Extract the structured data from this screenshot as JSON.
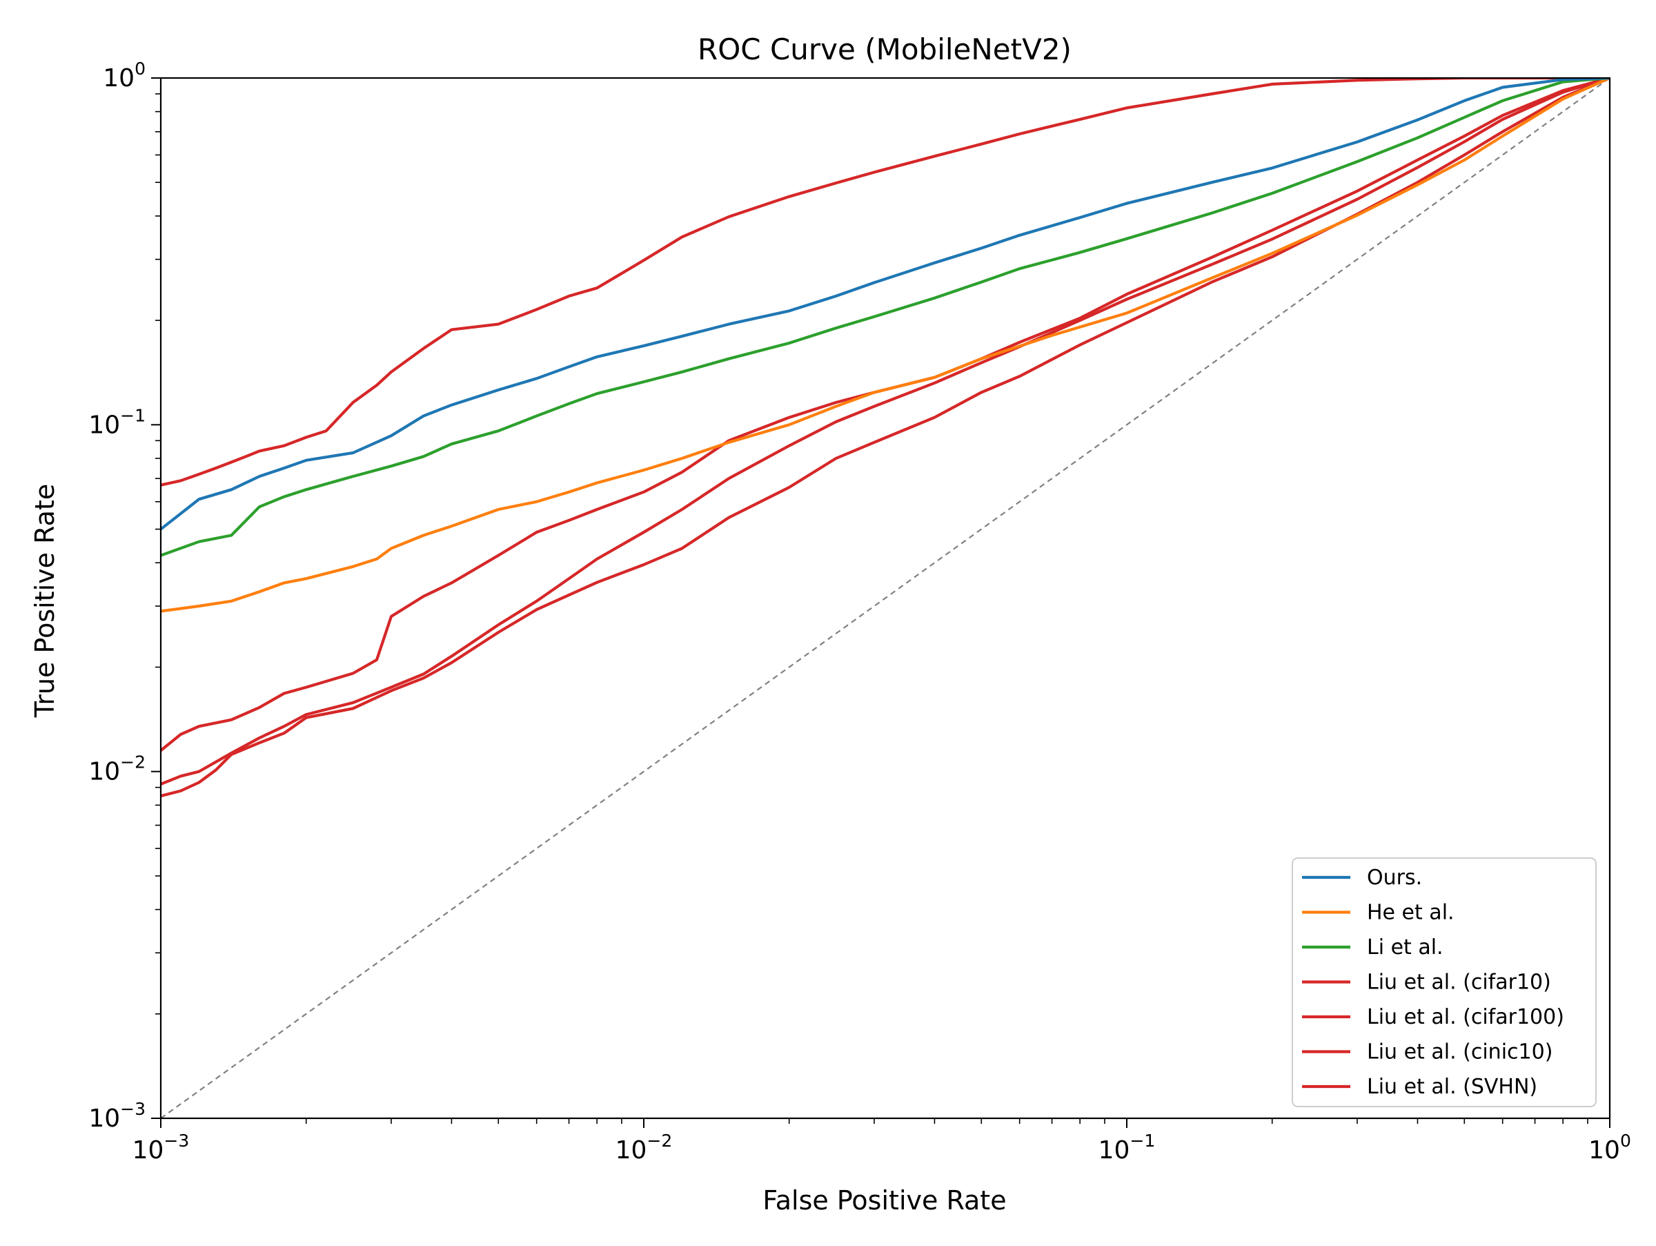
{
  "chart_data": {
    "type": "line",
    "title": "ROC Curve (MobileNetV2)",
    "xlabel": "False Positive Rate",
    "ylabel": "True Positive Rate",
    "xscale": "log",
    "yscale": "log",
    "xlim": [
      0.001,
      1
    ],
    "ylim": [
      0.001,
      1
    ],
    "grid": false,
    "legend_position": "lower-right",
    "x_ticks": [
      {
        "base": "10",
        "exp": "−3",
        "value": 0.001
      },
      {
        "base": "10",
        "exp": "−2",
        "value": 0.01
      },
      {
        "base": "10",
        "exp": "−1",
        "value": 0.1
      },
      {
        "base": "10",
        "exp": "0",
        "value": 1
      }
    ],
    "y_ticks": [
      {
        "base": "10",
        "exp": "−3",
        "value": 0.001
      },
      {
        "base": "10",
        "exp": "−2",
        "value": 0.01
      },
      {
        "base": "10",
        "exp": "−1",
        "value": 0.1
      },
      {
        "base": "10",
        "exp": "0",
        "value": 1
      }
    ],
    "reference_line": {
      "x": [
        0.001,
        1
      ],
      "y": [
        0.001,
        1
      ],
      "color": "#808080",
      "style": "dashed"
    },
    "series": [
      {
        "name": "Ours.",
        "color": "#1f77b4",
        "x": [
          0.001,
          0.0012,
          0.0014,
          0.0016,
          0.0018,
          0.002,
          0.0025,
          0.003,
          0.0035,
          0.004,
          0.005,
          0.006,
          0.007,
          0.008,
          0.01,
          0.012,
          0.015,
          0.02,
          0.025,
          0.03,
          0.04,
          0.05,
          0.06,
          0.08,
          0.1,
          0.15,
          0.2,
          0.3,
          0.4,
          0.5,
          0.6,
          0.8,
          1.0
        ],
        "y": [
          0.05,
          0.061,
          0.065,
          0.071,
          0.075,
          0.079,
          0.083,
          0.093,
          0.106,
          0.114,
          0.126,
          0.136,
          0.147,
          0.157,
          0.169,
          0.18,
          0.195,
          0.213,
          0.235,
          0.257,
          0.293,
          0.323,
          0.352,
          0.396,
          0.435,
          0.5,
          0.55,
          0.654,
          0.757,
          0.86,
          0.94,
          0.99,
          1.0
        ]
      },
      {
        "name": "He et al.",
        "color": "#ff7f0e",
        "x": [
          0.001,
          0.0012,
          0.0014,
          0.0016,
          0.0018,
          0.002,
          0.0025,
          0.0028,
          0.003,
          0.0035,
          0.004,
          0.005,
          0.006,
          0.007,
          0.008,
          0.01,
          0.012,
          0.015,
          0.02,
          0.025,
          0.03,
          0.04,
          0.05,
          0.07,
          0.1,
          0.15,
          0.2,
          0.3,
          0.4,
          0.5,
          0.6,
          0.8,
          1.0
        ],
        "y": [
          0.029,
          0.03,
          0.031,
          0.033,
          0.035,
          0.036,
          0.039,
          0.041,
          0.044,
          0.048,
          0.051,
          0.057,
          0.06,
          0.064,
          0.068,
          0.074,
          0.08,
          0.089,
          0.1,
          0.113,
          0.124,
          0.137,
          0.155,
          0.181,
          0.21,
          0.265,
          0.312,
          0.402,
          0.492,
          0.58,
          0.68,
          0.87,
          1.0
        ]
      },
      {
        "name": "Li et al.",
        "color": "#2ca02c",
        "x": [
          0.001,
          0.0012,
          0.0014,
          0.0016,
          0.0018,
          0.002,
          0.0025,
          0.003,
          0.0035,
          0.004,
          0.005,
          0.006,
          0.007,
          0.008,
          0.01,
          0.012,
          0.015,
          0.02,
          0.025,
          0.03,
          0.04,
          0.05,
          0.06,
          0.08,
          0.1,
          0.15,
          0.2,
          0.3,
          0.4,
          0.5,
          0.6,
          0.8,
          1.0
        ],
        "y": [
          0.042,
          0.046,
          0.048,
          0.058,
          0.062,
          0.065,
          0.071,
          0.076,
          0.081,
          0.088,
          0.096,
          0.106,
          0.115,
          0.123,
          0.133,
          0.142,
          0.155,
          0.172,
          0.19,
          0.205,
          0.232,
          0.258,
          0.282,
          0.314,
          0.344,
          0.408,
          0.465,
          0.574,
          0.672,
          0.77,
          0.86,
          0.975,
          1.0
        ]
      },
      {
        "name": "Liu et al. (cifar10)",
        "color": "#d62728",
        "x": [
          0.001,
          0.0011,
          0.0012,
          0.0013,
          0.0014,
          0.0015,
          0.0016,
          0.0018,
          0.002,
          0.0022,
          0.0025,
          0.0028,
          0.003,
          0.0035,
          0.004,
          0.005,
          0.006,
          0.007,
          0.008,
          0.01,
          0.012,
          0.015,
          0.02,
          0.025,
          0.03,
          0.04,
          0.05,
          0.06,
          0.08,
          0.1,
          0.15,
          0.2,
          0.3,
          0.4,
          0.5,
          0.6,
          0.8,
          1.0
        ],
        "y": [
          0.067,
          0.069,
          0.072,
          0.075,
          0.078,
          0.081,
          0.084,
          0.087,
          0.092,
          0.096,
          0.116,
          0.13,
          0.142,
          0.166,
          0.188,
          0.195,
          0.215,
          0.235,
          0.248,
          0.298,
          0.348,
          0.398,
          0.455,
          0.498,
          0.535,
          0.595,
          0.645,
          0.69,
          0.76,
          0.82,
          0.9,
          0.96,
          0.985,
          0.995,
          1.0,
          1.0,
          1.0,
          1.0
        ]
      },
      {
        "name": "Liu et al. (cifar100)",
        "color": "#d62728",
        "x": [
          0.001,
          0.0011,
          0.0012,
          0.0014,
          0.0016,
          0.0018,
          0.002,
          0.0025,
          0.0028,
          0.003,
          0.0035,
          0.004,
          0.005,
          0.006,
          0.007,
          0.008,
          0.01,
          0.012,
          0.015,
          0.02,
          0.025,
          0.03,
          0.04,
          0.05,
          0.06,
          0.08,
          0.1,
          0.15,
          0.2,
          0.3,
          0.4,
          0.5,
          0.6,
          0.8,
          1.0
        ],
        "y": [
          0.0115,
          0.0128,
          0.0135,
          0.0141,
          0.0153,
          0.0168,
          0.0175,
          0.0192,
          0.021,
          0.028,
          0.032,
          0.035,
          0.042,
          0.049,
          0.053,
          0.057,
          0.064,
          0.073,
          0.09,
          0.105,
          0.116,
          0.124,
          0.137,
          0.155,
          0.173,
          0.203,
          0.238,
          0.304,
          0.364,
          0.472,
          0.58,
          0.68,
          0.78,
          0.92,
          1.0
        ]
      },
      {
        "name": "Liu et al. (cinic10)",
        "color": "#d62728",
        "x": [
          0.001,
          0.0011,
          0.0012,
          0.0014,
          0.0016,
          0.0018,
          0.002,
          0.0025,
          0.003,
          0.0035,
          0.004,
          0.005,
          0.006,
          0.007,
          0.008,
          0.01,
          0.012,
          0.015,
          0.02,
          0.025,
          0.03,
          0.04,
          0.05,
          0.06,
          0.08,
          0.1,
          0.15,
          0.2,
          0.3,
          0.4,
          0.5,
          0.6,
          0.8,
          1.0
        ],
        "y": [
          0.0092,
          0.0097,
          0.01,
          0.0113,
          0.0125,
          0.0135,
          0.0146,
          0.0158,
          0.0175,
          0.0191,
          0.0215,
          0.0265,
          0.031,
          0.036,
          0.041,
          0.049,
          0.057,
          0.07,
          0.087,
          0.102,
          0.113,
          0.132,
          0.151,
          0.168,
          0.2,
          0.23,
          0.29,
          0.343,
          0.447,
          0.552,
          0.655,
          0.76,
          0.91,
          1.0
        ]
      },
      {
        "name": "Liu et al. (SVHN)",
        "color": "#d62728",
        "x": [
          0.001,
          0.0011,
          0.0012,
          0.0013,
          0.0014,
          0.0016,
          0.0018,
          0.002,
          0.0025,
          0.003,
          0.0035,
          0.004,
          0.005,
          0.006,
          0.007,
          0.008,
          0.01,
          0.012,
          0.015,
          0.02,
          0.025,
          0.03,
          0.04,
          0.05,
          0.06,
          0.08,
          0.1,
          0.15,
          0.2,
          0.3,
          0.4,
          0.5,
          0.6,
          0.8,
          1.0
        ],
        "y": [
          0.0085,
          0.0088,
          0.0093,
          0.0101,
          0.0112,
          0.0121,
          0.0129,
          0.0143,
          0.0152,
          0.0171,
          0.0186,
          0.0206,
          0.0252,
          0.0293,
          0.0323,
          0.0351,
          0.0395,
          0.044,
          0.054,
          0.066,
          0.08,
          0.089,
          0.105,
          0.124,
          0.138,
          0.17,
          0.197,
          0.258,
          0.305,
          0.405,
          0.5,
          0.6,
          0.7,
          0.88,
          1.0
        ]
      }
    ]
  }
}
